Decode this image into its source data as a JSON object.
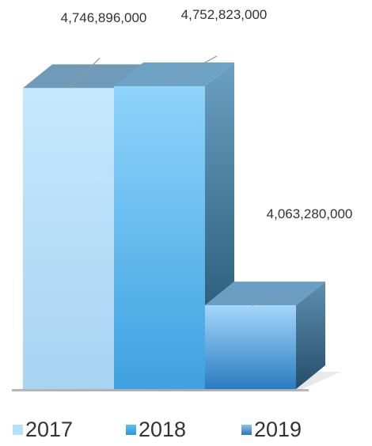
{
  "chart_data": {
    "type": "bar",
    "categories": [
      "2017",
      "2018",
      "2019"
    ],
    "values": [
      4746896000,
      4752823000,
      4063280000
    ],
    "data_labels": [
      "4,746,896,000",
      "4,752,823,000",
      "4,063,280,000"
    ],
    "title": "",
    "xlabel": "",
    "ylabel": "",
    "ylim": [
      3800000000,
      4800000000
    ],
    "grid": false,
    "legend_position": "bottom",
    "style": "3d",
    "colors": {
      "2017": "#b9e0fa",
      "2018": "#4fb4ec",
      "2019": "#5b9ed6"
    }
  },
  "legend": [
    {
      "label": "2017",
      "color": "#b9e0fa"
    },
    {
      "label": "2018",
      "color": "#4fb4ec"
    },
    {
      "label": "2019",
      "color": "#5b9ed6"
    }
  ]
}
